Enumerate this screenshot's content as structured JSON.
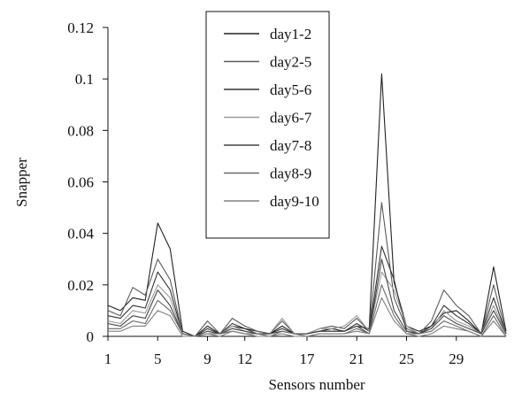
{
  "chart_data": {
    "type": "line",
    "xlabel": "Sensors number",
    "ylabel": "Snapper",
    "x": [
      1,
      2,
      3,
      4,
      5,
      6,
      7,
      8,
      9,
      10,
      11,
      12,
      13,
      14,
      15,
      16,
      17,
      18,
      19,
      20,
      21,
      22,
      23,
      24,
      25,
      26,
      27,
      28,
      29,
      30,
      31,
      32,
      33
    ],
    "xlim": [
      1,
      33
    ],
    "ylim": [
      0,
      0.12
    ],
    "xticks": [
      1,
      5,
      9,
      12,
      17,
      21,
      25,
      29
    ],
    "xtick_labels": [
      "1",
      "5",
      "9",
      "12",
      "17",
      "21",
      "25",
      "29"
    ],
    "yticks": [
      0,
      0.02,
      0.04,
      0.06,
      0.08,
      0.1,
      0.12
    ],
    "ytick_labels": [
      "0",
      "0.02",
      "0.04",
      "0.06",
      "0.08",
      "0.1",
      "0.12"
    ],
    "legend_position": "top-center",
    "series": [
      {
        "name": "day1-2",
        "color": "#222222",
        "values": [
          0.012,
          0.01,
          0.015,
          0.014,
          0.044,
          0.034,
          0.002,
          0.0,
          0.004,
          0.001,
          0.004,
          0.003,
          0.002,
          0.001,
          0.004,
          0.001,
          0.001,
          0.002,
          0.003,
          0.002,
          0.004,
          0.003,
          0.102,
          0.021,
          0.004,
          0.002,
          0.004,
          0.009,
          0.01,
          0.006,
          0.001,
          0.027,
          0.002
        ]
      },
      {
        "name": "day2-5",
        "color": "#5a5a5a",
        "values": [
          0.01,
          0.008,
          0.019,
          0.016,
          0.03,
          0.022,
          0.001,
          0.0,
          0.006,
          0.001,
          0.007,
          0.004,
          0.002,
          0.001,
          0.006,
          0.001,
          0.001,
          0.003,
          0.004,
          0.003,
          0.007,
          0.002,
          0.052,
          0.015,
          0.003,
          0.001,
          0.006,
          0.018,
          0.012,
          0.008,
          0.001,
          0.02,
          0.001
        ]
      },
      {
        "name": "day5-6",
        "color": "#333333",
        "values": [
          0.008,
          0.007,
          0.012,
          0.011,
          0.025,
          0.018,
          0.001,
          0.0,
          0.003,
          0.001,
          0.005,
          0.003,
          0.001,
          0.001,
          0.003,
          0.001,
          0.001,
          0.002,
          0.002,
          0.002,
          0.005,
          0.002,
          0.035,
          0.022,
          0.002,
          0.001,
          0.004,
          0.012,
          0.008,
          0.005,
          0.001,
          0.015,
          0.001
        ]
      },
      {
        "name": "day6-7",
        "color": "#999999",
        "values": [
          0.006,
          0.005,
          0.01,
          0.009,
          0.02,
          0.015,
          0.001,
          0.0,
          0.002,
          0.001,
          0.004,
          0.002,
          0.001,
          0.001,
          0.007,
          0.001,
          0.001,
          0.003,
          0.003,
          0.004,
          0.008,
          0.002,
          0.025,
          0.018,
          0.004,
          0.001,
          0.003,
          0.01,
          0.006,
          0.004,
          0.001,
          0.012,
          0.001
        ]
      },
      {
        "name": "day7-8",
        "color": "#444444",
        "values": [
          0.005,
          0.004,
          0.008,
          0.007,
          0.018,
          0.012,
          0.001,
          0.0,
          0.002,
          0.001,
          0.003,
          0.002,
          0.001,
          0.001,
          0.002,
          0.001,
          0.001,
          0.002,
          0.002,
          0.002,
          0.004,
          0.001,
          0.03,
          0.01,
          0.002,
          0.001,
          0.003,
          0.008,
          0.005,
          0.003,
          0.001,
          0.01,
          0.001
        ]
      },
      {
        "name": "day8-9",
        "color": "#6a6a6a",
        "values": [
          0.003,
          0.003,
          0.006,
          0.005,
          0.014,
          0.01,
          0.001,
          0.0,
          0.001,
          0.001,
          0.002,
          0.001,
          0.001,
          0.0,
          0.002,
          0.001,
          0.0,
          0.001,
          0.001,
          0.001,
          0.003,
          0.001,
          0.02,
          0.008,
          0.001,
          0.001,
          0.002,
          0.006,
          0.004,
          0.002,
          0.0,
          0.008,
          0.0
        ]
      },
      {
        "name": "day9-10",
        "color": "#808080",
        "values": [
          0.002,
          0.002,
          0.004,
          0.004,
          0.01,
          0.008,
          0.0,
          0.0,
          0.001,
          0.0,
          0.002,
          0.001,
          0.0,
          0.0,
          0.001,
          0.0,
          0.0,
          0.001,
          0.001,
          0.001,
          0.002,
          0.001,
          0.015,
          0.006,
          0.001,
          0.0,
          0.001,
          0.004,
          0.003,
          0.002,
          0.0,
          0.006,
          0.0
        ]
      }
    ]
  }
}
